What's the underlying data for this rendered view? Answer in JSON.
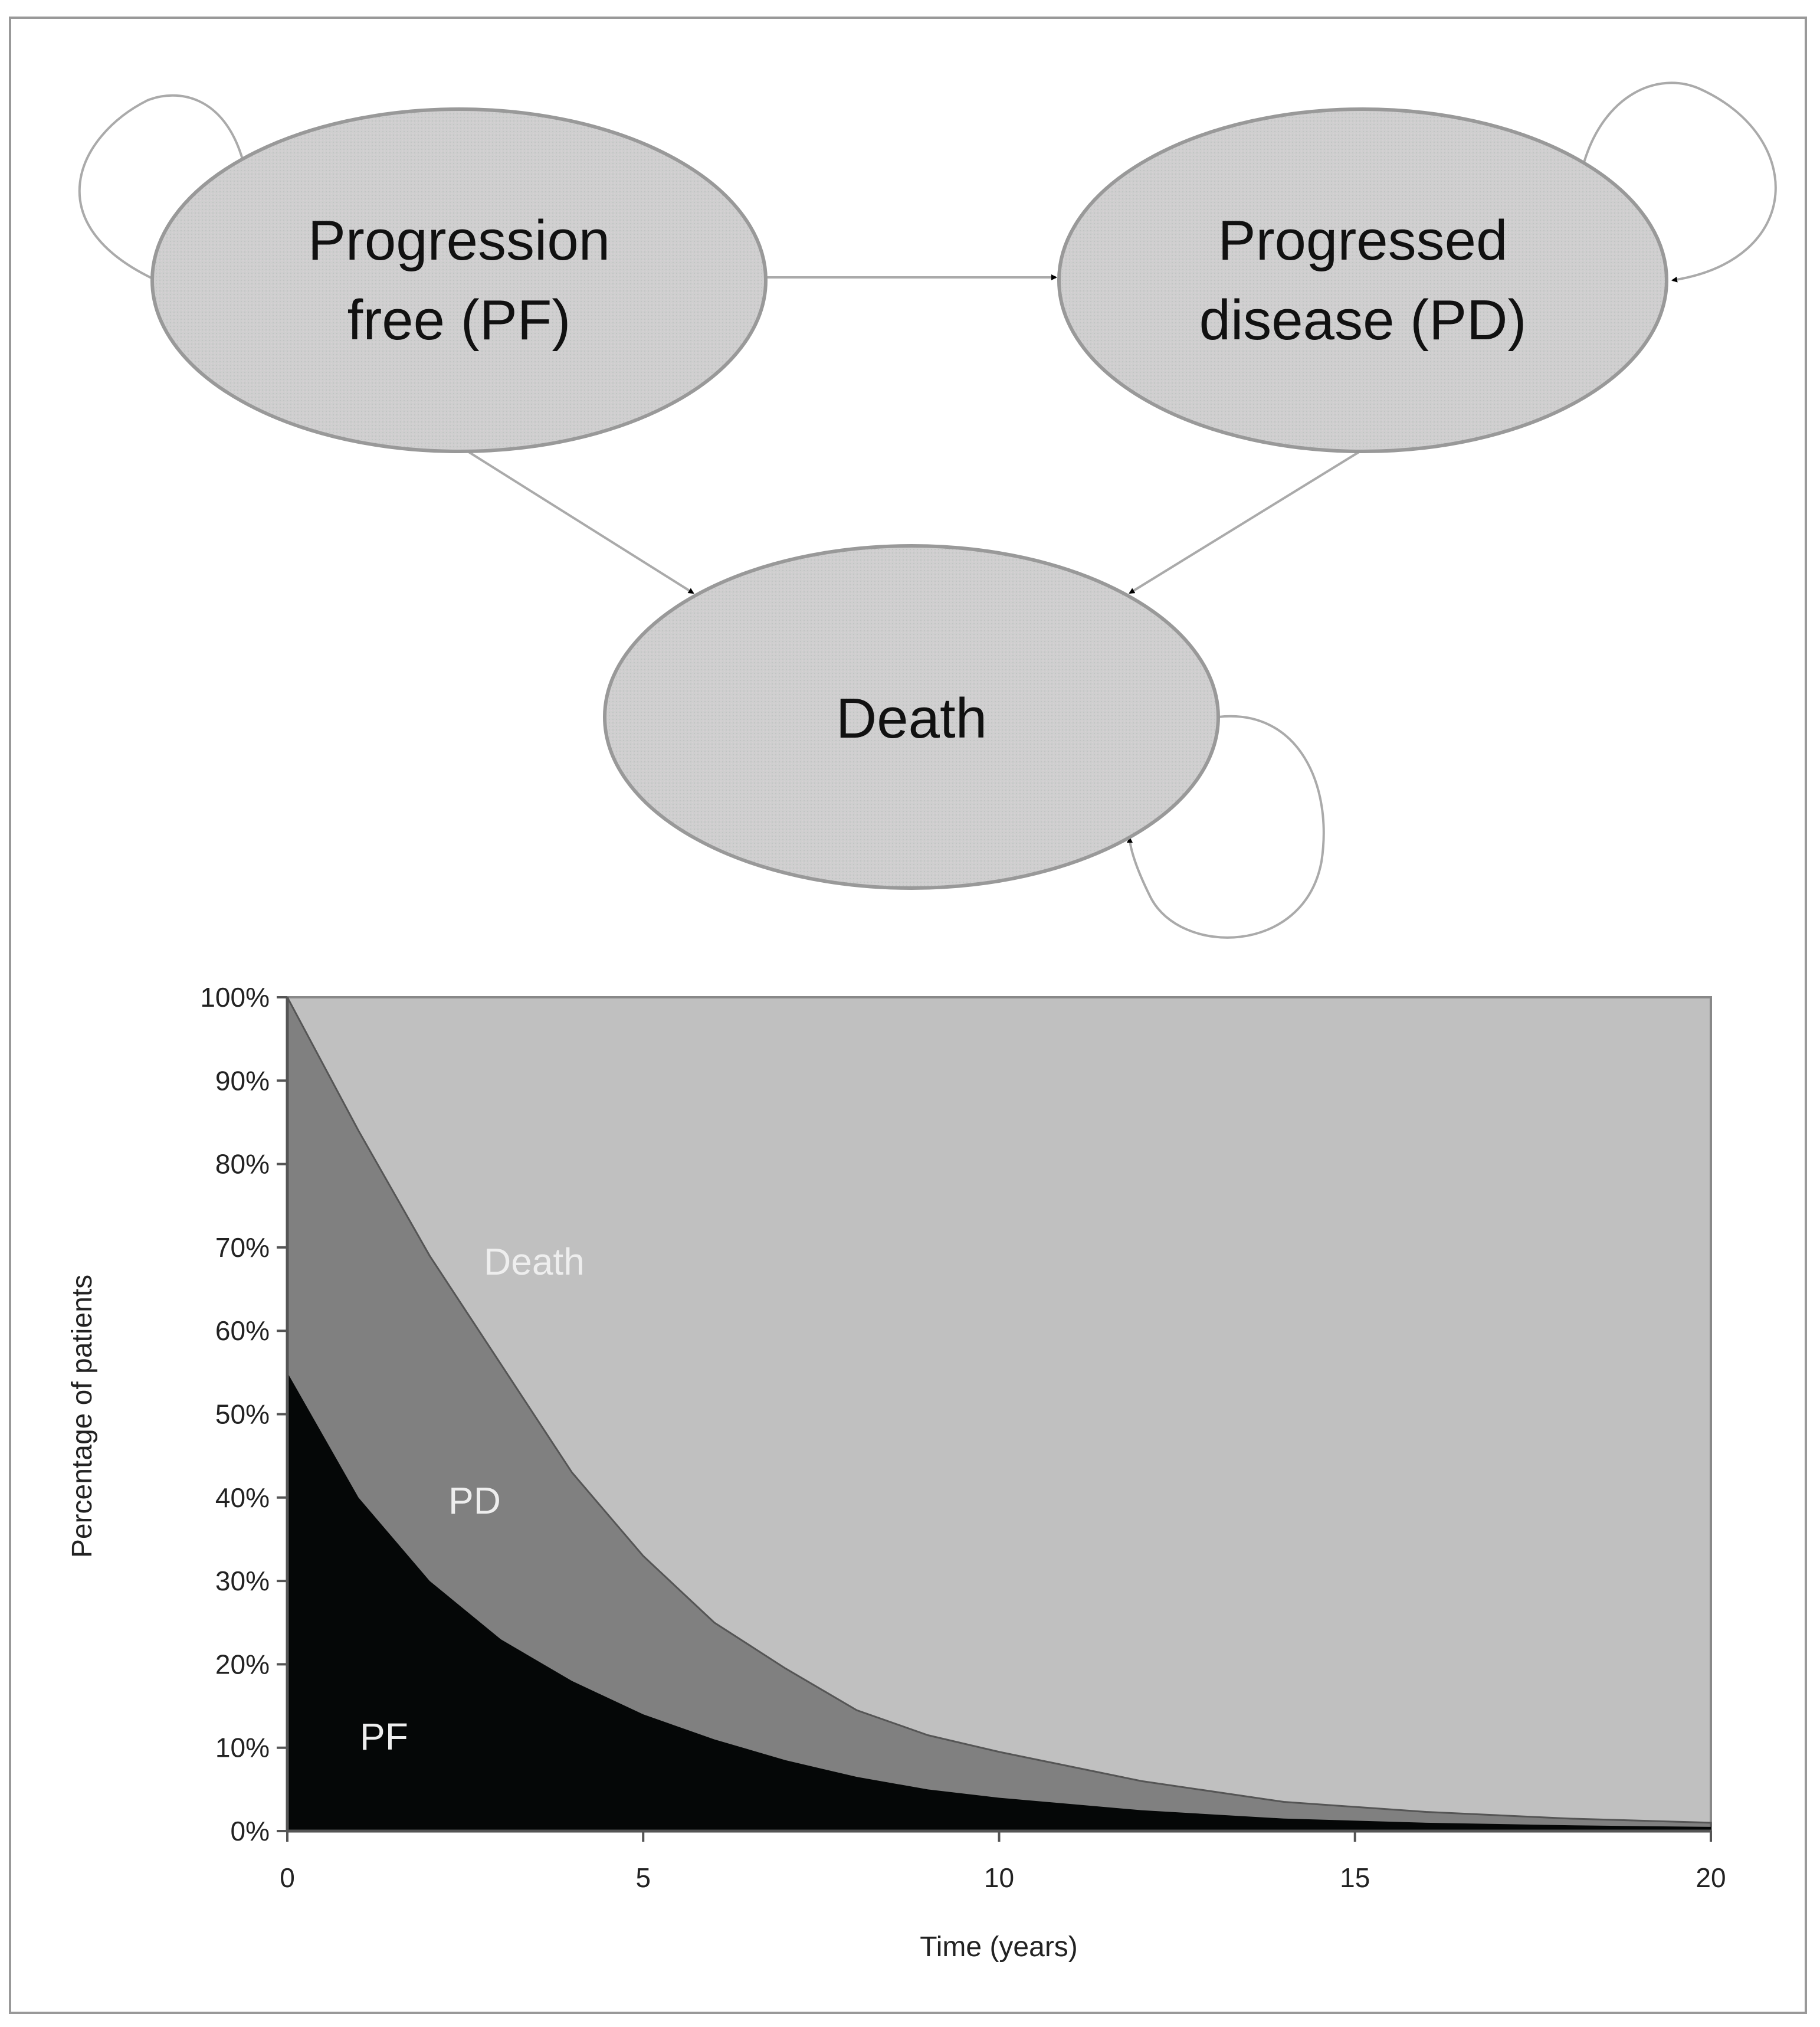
{
  "diagram": {
    "nodes": [
      {
        "id": "PF",
        "line1": "Progression",
        "line2": "free (PF)"
      },
      {
        "id": "PD",
        "line1": "Progressed",
        "line2": "disease (PD)"
      },
      {
        "id": "Death",
        "line1": "Death"
      }
    ],
    "edges": [
      {
        "from": "PF",
        "to": "PF"
      },
      {
        "from": "PF",
        "to": "PD"
      },
      {
        "from": "PF",
        "to": "Death"
      },
      {
        "from": "PD",
        "to": "PD"
      },
      {
        "from": "PD",
        "to": "Death"
      },
      {
        "from": "Death",
        "to": "Death"
      }
    ]
  },
  "chart_data": {
    "type": "area",
    "stacked": true,
    "title": "",
    "xlabel": "Time (years)",
    "ylabel": "Percentage of patients",
    "xlim": [
      0,
      20
    ],
    "ylim": [
      0,
      100
    ],
    "x_ticks": [
      "0",
      "5",
      "10",
      "15",
      "20"
    ],
    "y_ticks": [
      "0%",
      "10%",
      "20%",
      "30%",
      "40%",
      "50%",
      "60%",
      "70%",
      "80%",
      "90%",
      "100%"
    ],
    "x": [
      0,
      1,
      2,
      3,
      4,
      5,
      6,
      7,
      8,
      9,
      10,
      12,
      14,
      16,
      18,
      20
    ],
    "series": [
      {
        "name": "PF",
        "color": "#050707",
        "values": [
          55,
          40,
          30,
          23,
          18,
          14,
          11,
          8.5,
          6.5,
          5,
          4,
          2.5,
          1.5,
          1,
          0.7,
          0.5
        ]
      },
      {
        "name": "PD",
        "color": "#808080",
        "values": [
          45,
          44,
          39,
          33,
          25,
          19,
          14,
          11,
          8,
          6.5,
          5.5,
          3.5,
          2,
          1.3,
          0.8,
          0.5
        ]
      },
      {
        "name": "Death",
        "color": "#c0c0c0",
        "values": [
          0,
          16,
          31,
          44,
          57,
          67,
          75,
          80.5,
          85.5,
          88.5,
          90.5,
          94,
          96.5,
          97.7,
          98.5,
          99
        ]
      }
    ],
    "area_labels": [
      "PF",
      "PD",
      "Death"
    ],
    "grid": false,
    "legend": "none"
  }
}
